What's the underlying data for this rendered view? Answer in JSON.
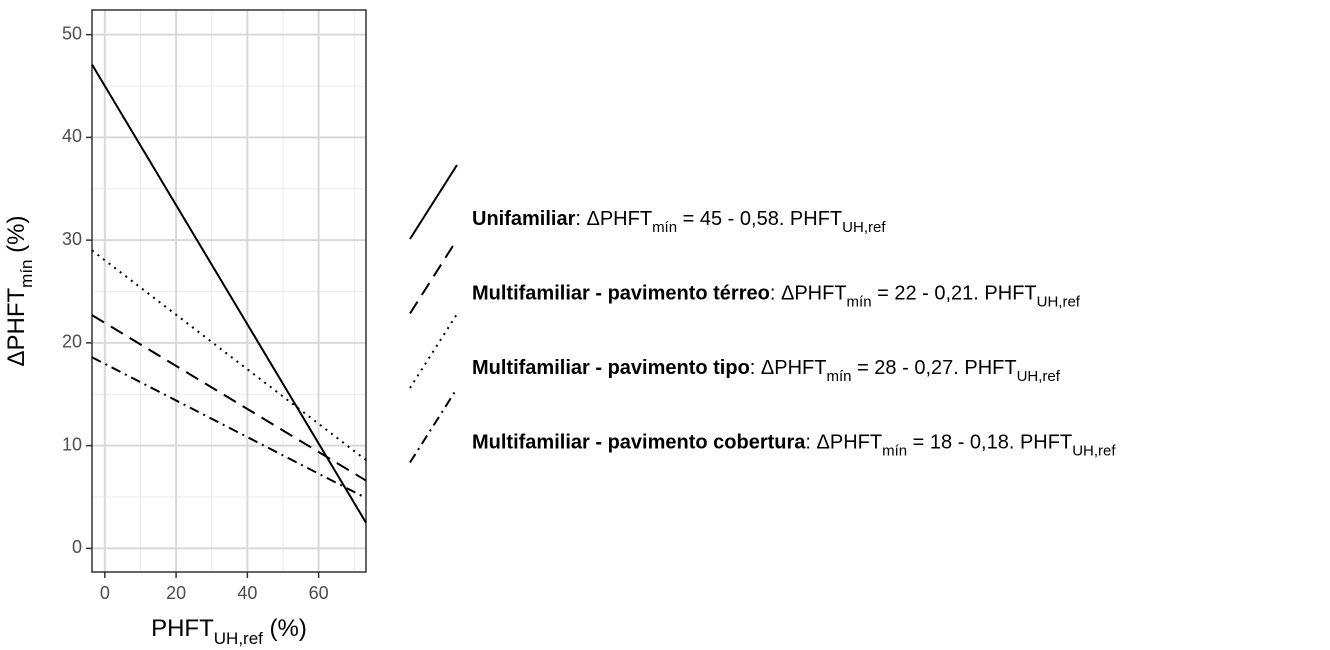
{
  "chart_data": {
    "type": "line",
    "x_label": [
      "PHFT",
      "UH,ref",
      " (%)"
    ],
    "y_label": [
      "ΔPHFT",
      "mín",
      " (%)"
    ],
    "x": [
      -3.6,
      73.3
    ],
    "series": [
      {
        "name": "Unifamiliar",
        "formula": [
          ": ΔPHFT",
          "mín",
          " = 45 - 0,58. PHFT",
          "UH,ref"
        ],
        "color": "#000000",
        "dash": "solid",
        "values": [
          47.1,
          2.5
        ]
      },
      {
        "name": "Multifamiliar - pavimento térreo",
        "formula": [
          ":  ΔPHFT",
          "mín",
          " = 22 - 0,21. PHFT",
          "UH,ref"
        ],
        "color": "#000000",
        "dash": "dashed",
        "values": [
          22.7,
          6.6
        ]
      },
      {
        "name": "Multifamiliar - pavimento tipo",
        "formula": [
          ":  ΔPHFT",
          "mín",
          " = 28 - 0,27. PHFT",
          "UH,ref"
        ],
        "color": "#000000",
        "dash": "dotted",
        "values": [
          29.0,
          8.6
        ]
      },
      {
        "name": "Multifamiliar - pavimento cobertura",
        "formula": [
          ":  ΔPHFT",
          "mín",
          " = 18 - 0,18. PHFT",
          "UH,ref"
        ],
        "color": "#000000",
        "dash": "dashdot",
        "values": [
          18.6,
          4.9
        ]
      }
    ],
    "xlim": [
      -3.6,
      73.3
    ],
    "ylim": [
      -2.3,
      52.4
    ],
    "xticks": [
      0,
      20,
      40,
      60
    ],
    "yticks": [
      0,
      10,
      20,
      30,
      40,
      50
    ],
    "xminor": [
      10,
      30,
      50,
      70
    ],
    "yminor": [
      5,
      15,
      25,
      35,
      45
    ],
    "grid": true,
    "legend": "right"
  }
}
